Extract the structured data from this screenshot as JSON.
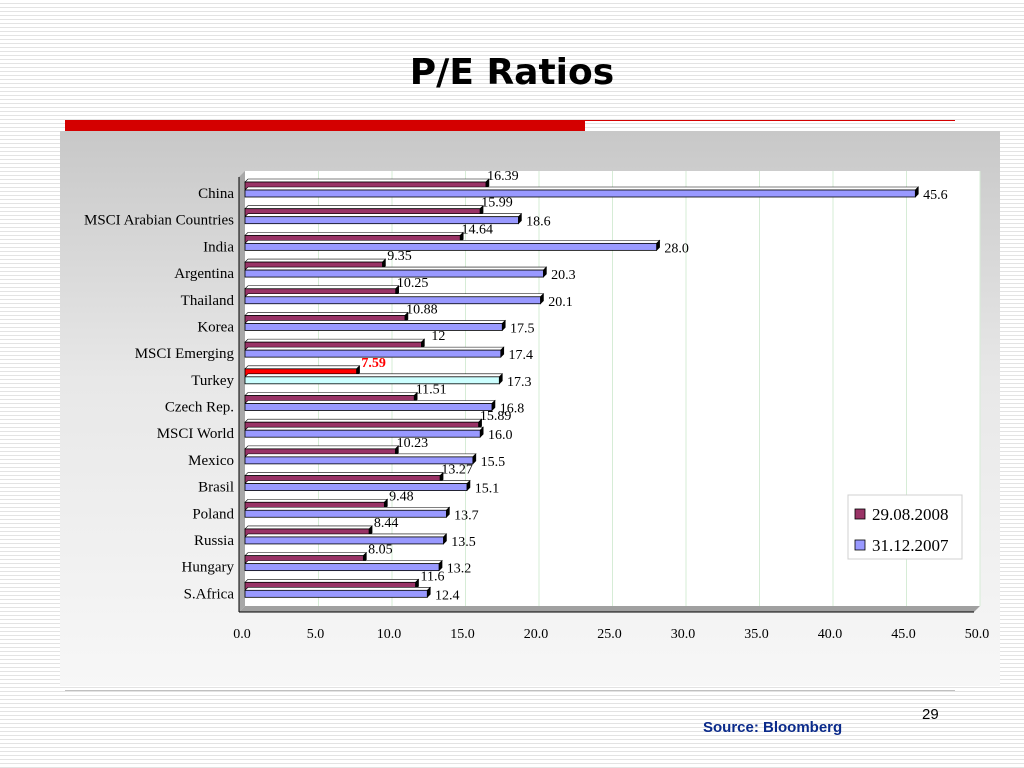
{
  "slide": {
    "title": "P/E Ratios",
    "page_number": "29",
    "source": "Source: Bloomberg"
  },
  "colors": {
    "series1": "#993366",
    "series2": "#9999ff",
    "highlight_s1": "#ff0000",
    "highlight_s2": "#ccffff",
    "highlight_label": "#ff0000",
    "accent": "#d40000"
  },
  "chart_data": {
    "type": "bar",
    "orientation": "horizontal",
    "categories": [
      "China",
      "MSCI Arabian Countries",
      "India",
      "Argentina",
      "Thailand",
      "Korea",
      "MSCI Emerging",
      "Turkey",
      "Czech Rep.",
      "MSCI World",
      "Mexico",
      "Brasil",
      "Poland",
      "Russia",
      "Hungary",
      "S.Africa"
    ],
    "series": [
      {
        "name": "29.08.2008",
        "values": [
          16.39,
          15.99,
          14.64,
          9.35,
          10.25,
          10.88,
          12,
          7.59,
          11.51,
          15.89,
          10.23,
          13.27,
          9.48,
          8.44,
          8.05,
          11.6
        ],
        "labels": [
          "16.39",
          "15.99",
          "14.64",
          "9.35",
          "10.25",
          "10.88",
          "12",
          "7.59",
          "11.51",
          "15.89",
          "10.23",
          "13.27",
          "9.48",
          "8.44",
          "8.05",
          "11.6"
        ]
      },
      {
        "name": "31.12.2007",
        "values": [
          45.6,
          18.6,
          28.0,
          20.3,
          20.1,
          17.5,
          17.4,
          17.3,
          16.8,
          16.0,
          15.5,
          15.1,
          13.7,
          13.5,
          13.2,
          12.4
        ],
        "labels": [
          "45.6",
          "18.6",
          "28.0",
          "20.3",
          "20.1",
          "17.5",
          "17.4",
          "17.3",
          "16.8",
          "16.0",
          "15.5",
          "15.1",
          "13.7",
          "13.5",
          "13.2",
          "12.4"
        ]
      }
    ],
    "highlight_category": "Turkey",
    "xlim": [
      0,
      50
    ],
    "xticks": [
      "0.0",
      "5.0",
      "10.0",
      "15.0",
      "20.0",
      "25.0",
      "30.0",
      "35.0",
      "40.0",
      "45.0",
      "50.0"
    ],
    "grid": "vertical",
    "legend_position": "bottom-right"
  }
}
